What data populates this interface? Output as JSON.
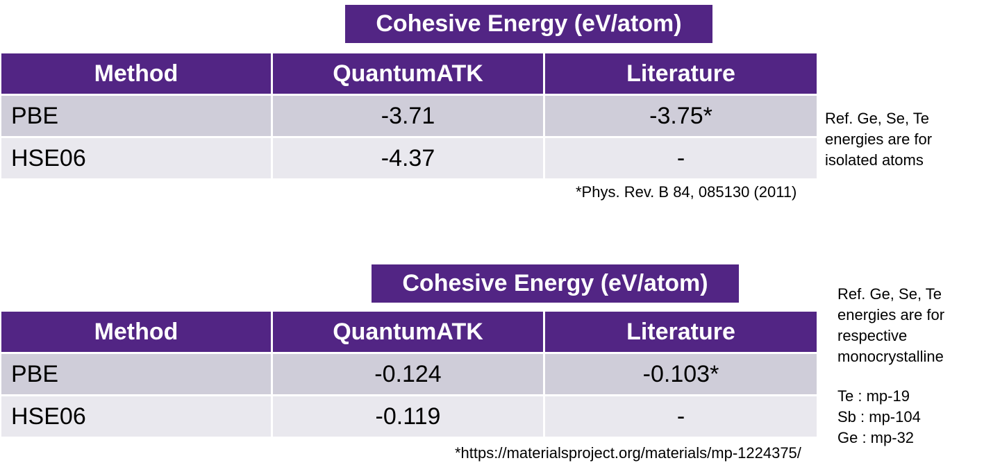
{
  "section1": {
    "title": "Cohesive Energy (eV/atom)",
    "headers": [
      "Method",
      "QuantumATK",
      "Literature"
    ],
    "rows": [
      {
        "method": "PBE",
        "quantumatk": "-3.71",
        "literature": "-3.75*"
      },
      {
        "method": "HSE06",
        "quantumatk": "-4.37",
        "literature": "-"
      }
    ],
    "footnote": "*Phys. Rev. B 84, 085130 (2011)",
    "note_lines": [
      "Ref. Ge, Se, Te",
      "energies are for",
      "isolated atoms"
    ]
  },
  "section2": {
    "title": "Cohesive Energy (eV/atom)",
    "headers": [
      "Method",
      "QuantumATK",
      "Literature"
    ],
    "rows": [
      {
        "method": "PBE",
        "quantumatk": "-0.124",
        "literature": "-0.103*"
      },
      {
        "method": "HSE06",
        "quantumatk": "-0.119",
        "literature": "-"
      }
    ],
    "footnote": "*https://materialsproject.org/materials/mp-1224375/",
    "note_lines": [
      "Ref. Ge, Se, Te",
      "energies are for",
      "respective",
      "monocrystalline"
    ],
    "ref_lines": [
      "Te : mp-19",
      "Sb : mp-104",
      "Ge : mp-32"
    ]
  },
  "colors": {
    "header_purple": "#522584",
    "row_dark": "#cfcdd9",
    "row_light": "#e9e8ee"
  }
}
